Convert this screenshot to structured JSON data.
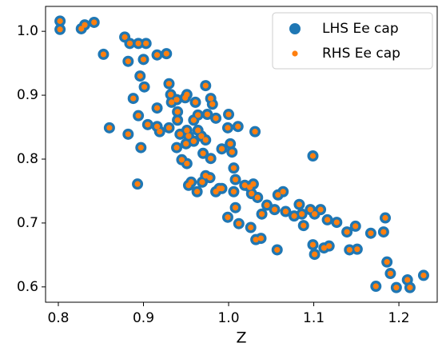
{
  "chart_data": {
    "type": "scatter",
    "xlabel": "Z",
    "xlim": [
      0.785,
      1.245
    ],
    "ylim": [
      0.576,
      1.039
    ],
    "xticks": [
      0.8,
      0.9,
      {
        "value": 1,
        "label": "1.0"
      },
      1.1,
      1.2
    ],
    "yticks": [
      0.6,
      0.7,
      0.8,
      0.9,
      {
        "value": 1,
        "label": "1.0"
      }
    ],
    "grid": false,
    "legend": "upper right",
    "series": [
      {
        "name": "LHS Ee cap",
        "color": "#1f77b4",
        "x": [
          0.802,
          0.802,
          0.827,
          0.831,
          0.842,
          0.853,
          0.878,
          0.884,
          0.894,
          0.903,
          0.9,
          0.916,
          0.927,
          0.882,
          0.896,
          0.888,
          0.894,
          0.901,
          0.93,
          0.86,
          0.882,
          0.897,
          0.893,
          0.905,
          0.916,
          0.916,
          0.919,
          0.932,
          0.933,
          0.939,
          0.949,
          0.951,
          0.961,
          0.973,
          0.979,
          0.981,
          0.94,
          0.94,
          0.93,
          0.943,
          0.939,
          0.945,
          0.951,
          0.953,
          0.956,
          0.963,
          0.969,
          0.964,
          0.968,
          0.973,
          0.951,
          0.953,
          0.959,
          0.95,
          0.959,
          0.964,
          0.975,
          0.985,
          0.97,
          0.979,
          0.973,
          0.978,
          0.985,
          0.989,
          0.992,
          0.992,
          0.999,
          1.0,
          1.002,
          1.011,
          1.004,
          1.006,
          1.008,
          1.006,
          1.008,
          0.999,
          1.012,
          1.019,
          1.025,
          1.029,
          1.027,
          1.034,
          1.031,
          1.039,
          1.026,
          1.032,
          1.038,
          1.045,
          1.054,
          1.058,
          1.064,
          1.057,
          1.067,
          1.077,
          1.083,
          1.086,
          1.088,
          1.096,
          1.099,
          1.101,
          1.108,
          1.099,
          1.101,
          1.112,
          1.118,
          1.116,
          1.127,
          1.139,
          1.149,
          1.142,
          1.151,
          1.167,
          1.184,
          1.182,
          1.186,
          1.19,
          1.173,
          1.197,
          1.21,
          1.213,
          1.229
        ],
        "values": [
          1.016,
          1.003,
          1.004,
          1.01,
          1.014,
          0.964,
          0.991,
          0.981,
          0.981,
          0.981,
          0.956,
          0.963,
          0.965,
          0.953,
          0.93,
          0.895,
          0.868,
          0.913,
          0.918,
          0.849,
          0.839,
          0.818,
          0.761,
          0.854,
          0.88,
          0.851,
          0.843,
          0.901,
          0.889,
          0.893,
          0.896,
          0.901,
          0.889,
          0.915,
          0.895,
          0.886,
          0.874,
          0.861,
          0.849,
          0.839,
          0.818,
          0.799,
          0.793,
          0.759,
          0.764,
          0.749,
          0.764,
          0.845,
          0.836,
          0.83,
          0.845,
          0.836,
          0.828,
          0.824,
          0.861,
          0.869,
          0.87,
          0.864,
          0.809,
          0.801,
          0.774,
          0.771,
          0.749,
          0.754,
          0.754,
          0.816,
          0.849,
          0.87,
          0.824,
          0.851,
          0.811,
          0.786,
          0.768,
          0.749,
          0.724,
          0.709,
          0.699,
          0.759,
          0.756,
          0.761,
          0.746,
          0.74,
          0.843,
          0.714,
          0.693,
          0.674,
          0.676,
          0.728,
          0.721,
          0.744,
          0.749,
          0.658,
          0.718,
          0.711,
          0.729,
          0.714,
          0.696,
          0.721,
          0.805,
          0.714,
          0.721,
          0.666,
          0.651,
          0.661,
          0.664,
          0.705,
          0.701,
          0.686,
          0.695,
          0.658,
          0.659,
          0.684,
          0.708,
          0.686,
          0.639,
          0.621,
          0.601,
          0.599,
          0.611,
          0.599,
          0.618
        ]
      },
      {
        "name": "RHS Ee cap",
        "color": "#ff7f0e",
        "x": [
          0.802,
          0.802,
          0.827,
          0.831,
          0.842,
          0.853,
          0.878,
          0.884,
          0.894,
          0.903,
          0.9,
          0.916,
          0.927,
          0.882,
          0.896,
          0.888,
          0.894,
          0.901,
          0.93,
          0.86,
          0.882,
          0.897,
          0.893,
          0.905,
          0.916,
          0.916,
          0.919,
          0.932,
          0.933,
          0.939,
          0.949,
          0.951,
          0.961,
          0.973,
          0.979,
          0.981,
          0.94,
          0.94,
          0.93,
          0.943,
          0.939,
          0.945,
          0.951,
          0.953,
          0.956,
          0.963,
          0.969,
          0.964,
          0.968,
          0.973,
          0.951,
          0.953,
          0.959,
          0.95,
          0.959,
          0.964,
          0.975,
          0.985,
          0.97,
          0.979,
          0.973,
          0.978,
          0.985,
          0.989,
          0.992,
          0.992,
          0.999,
          1.0,
          1.002,
          1.011,
          1.004,
          1.006,
          1.008,
          1.006,
          1.008,
          0.999,
          1.012,
          1.019,
          1.025,
          1.029,
          1.027,
          1.034,
          1.031,
          1.039,
          1.026,
          1.032,
          1.038,
          1.045,
          1.054,
          1.058,
          1.064,
          1.057,
          1.067,
          1.077,
          1.083,
          1.086,
          1.088,
          1.096,
          1.099,
          1.101,
          1.108,
          1.099,
          1.101,
          1.112,
          1.118,
          1.116,
          1.127,
          1.139,
          1.149,
          1.142,
          1.151,
          1.167,
          1.184,
          1.182,
          1.186,
          1.19,
          1.173,
          1.197,
          1.21,
          1.213,
          1.229
        ],
        "values": [
          1.016,
          1.003,
          1.004,
          1.01,
          1.014,
          0.964,
          0.991,
          0.981,
          0.981,
          0.981,
          0.956,
          0.963,
          0.965,
          0.953,
          0.93,
          0.895,
          0.868,
          0.913,
          0.918,
          0.849,
          0.839,
          0.818,
          0.761,
          0.854,
          0.88,
          0.851,
          0.843,
          0.901,
          0.889,
          0.893,
          0.896,
          0.901,
          0.889,
          0.915,
          0.895,
          0.886,
          0.874,
          0.861,
          0.849,
          0.839,
          0.818,
          0.799,
          0.793,
          0.759,
          0.764,
          0.749,
          0.764,
          0.845,
          0.836,
          0.83,
          0.845,
          0.836,
          0.828,
          0.824,
          0.861,
          0.869,
          0.87,
          0.864,
          0.809,
          0.801,
          0.774,
          0.771,
          0.749,
          0.754,
          0.754,
          0.816,
          0.849,
          0.87,
          0.824,
          0.851,
          0.811,
          0.786,
          0.768,
          0.749,
          0.724,
          0.709,
          0.699,
          0.759,
          0.756,
          0.761,
          0.746,
          0.74,
          0.843,
          0.714,
          0.693,
          0.674,
          0.676,
          0.728,
          0.721,
          0.744,
          0.749,
          0.658,
          0.718,
          0.711,
          0.729,
          0.714,
          0.696,
          0.721,
          0.805,
          0.714,
          0.721,
          0.666,
          0.651,
          0.661,
          0.664,
          0.705,
          0.701,
          0.686,
          0.695,
          0.658,
          0.659,
          0.684,
          0.708,
          0.686,
          0.639,
          0.621,
          0.601,
          0.599,
          0.611,
          0.599,
          0.618
        ]
      }
    ]
  }
}
